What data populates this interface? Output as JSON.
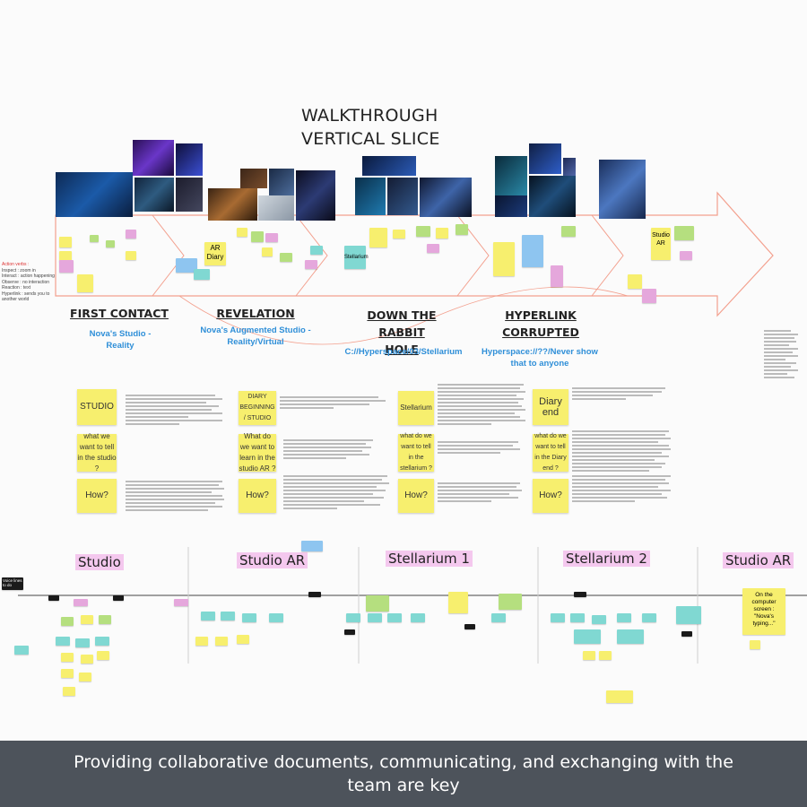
{
  "board": {
    "title_line1": "WALKTHROUGH",
    "title_line2": "VERTICAL SLICE",
    "side_note": [
      "Action verbs :",
      "Inspect : zoom in",
      "Interact : action happening",
      "Observe : no interaction",
      "Reaction : text",
      "Hyperlink : sends you to",
      "another world"
    ],
    "sections": [
      {
        "title": "FIRST CONTACT",
        "subtitle": "Nova's Studio - Reality"
      },
      {
        "title": "REVELATION",
        "subtitle": "Nova's Augmented Studio - Reality/Virtual"
      },
      {
        "title": "DOWN THE RABBIT HOLE",
        "subtitle": "C://Hyperspace/03/Stellarium"
      },
      {
        "title": "HYPERLINK CORRUPTED",
        "subtitle": "Hyperspace://??/Never show that to anyone"
      }
    ],
    "arrow_labels": {
      "ar_diary": "AR Diary",
      "stellarium": "Stellarium",
      "studio_ar": "Studio AR"
    },
    "notes": {
      "studio": "STUDIO",
      "what_studio": "what we want to tell in the studio ?",
      "how1": "How?",
      "diary_beginning": "DIARY BEGINNING / STUDIO",
      "what_studio_ar": "What do we want to learn in the studio AR ?",
      "how2": "How?",
      "stellarium": "Stellarium",
      "what_stellarium": "what do we want to tell in the stellarium ?",
      "how3": "How?",
      "diary_end": "Diary end",
      "what_diary": "what do we want to tell in the Diary end ?",
      "how4": "How?"
    },
    "timeline": {
      "labels": [
        "Studio",
        "Studio AR",
        "Stellarium 1",
        "Stellarium 2",
        "Studio AR"
      ],
      "voice_lines": "Voice lines to do",
      "computer_note": "On the computer screen : \"Nova's typing...\""
    }
  },
  "footer": {
    "caption": "Providing collaborative documents, communicating, and exchanging with the team are key"
  }
}
